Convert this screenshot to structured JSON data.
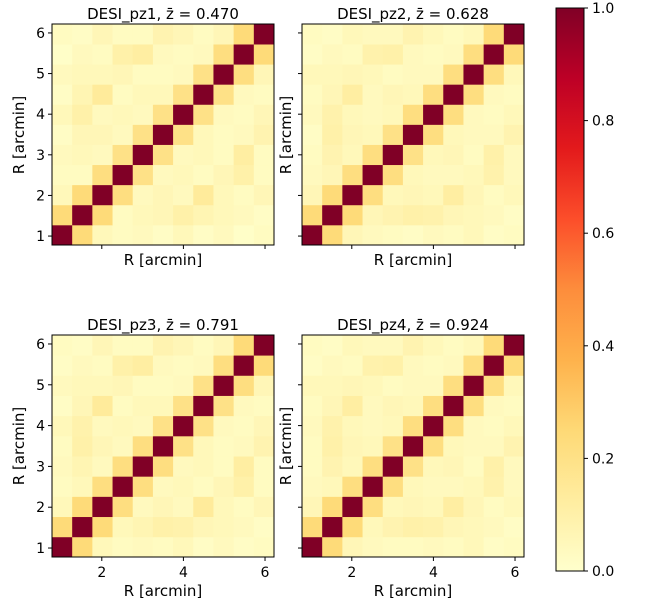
{
  "chart_data": {
    "type": "heatmap",
    "colormap": "YlOrRd",
    "colorbar": {
      "range": [
        0.0,
        1.0
      ],
      "ticks": [
        0.0,
        0.2,
        0.4,
        0.6,
        0.8,
        1.0
      ],
      "tick_labels": [
        "0.0",
        "0.2",
        "0.4",
        "0.6",
        "0.8",
        "1.0"
      ]
    },
    "panels": [
      {
        "title": "DESI_pz1, z̄ = 0.470",
        "xlabel": "R [arcmin]",
        "ylabel": "R [arcmin]",
        "xticks": [],
        "xtick_labels": [],
        "yticks": [
          1,
          2,
          3,
          4,
          5,
          6
        ],
        "ytick_labels": [
          "1",
          "2",
          "3",
          "4",
          "5",
          "6"
        ],
        "matrix": [
          [
            1.0,
            0.24,
            0.05,
            0.03,
            0.04,
            0.02,
            0.05,
            0.02,
            0.04,
            0.01,
            0.03
          ],
          [
            0.24,
            1.0,
            0.24,
            0.03,
            0.05,
            0.06,
            0.1,
            0.07,
            0.05,
            0.04,
            0.02
          ],
          [
            0.05,
            0.24,
            1.0,
            0.22,
            0.04,
            0.06,
            0.04,
            0.14,
            0.05,
            0.03,
            0.06
          ],
          [
            0.03,
            0.03,
            0.22,
            1.0,
            0.2,
            0.04,
            0.05,
            0.03,
            0.06,
            0.1,
            0.03
          ],
          [
            0.04,
            0.05,
            0.04,
            0.2,
            1.0,
            0.2,
            0.04,
            0.05,
            0.03,
            0.12,
            0.03
          ],
          [
            0.02,
            0.06,
            0.06,
            0.04,
            0.2,
            1.0,
            0.2,
            0.05,
            0.03,
            0.04,
            0.08
          ],
          [
            0.05,
            0.1,
            0.04,
            0.05,
            0.04,
            0.2,
            1.0,
            0.2,
            0.04,
            0.03,
            0.06
          ],
          [
            0.02,
            0.07,
            0.14,
            0.03,
            0.05,
            0.05,
            0.2,
            1.0,
            0.2,
            0.04,
            0.03
          ],
          [
            0.04,
            0.05,
            0.05,
            0.06,
            0.03,
            0.03,
            0.04,
            0.2,
            1.0,
            0.22,
            0.06
          ],
          [
            0.01,
            0.04,
            0.03,
            0.1,
            0.12,
            0.04,
            0.03,
            0.04,
            0.22,
            1.0,
            0.24
          ],
          [
            0.03,
            0.02,
            0.06,
            0.03,
            0.03,
            0.08,
            0.06,
            0.03,
            0.06,
            0.24,
            1.0
          ]
        ]
      },
      {
        "title": "DESI_pz2, z̄ = 0.628",
        "xlabel": "R [arcmin]",
        "ylabel": "R [arcmin]",
        "xticks": [],
        "xtick_labels": [],
        "yticks": [],
        "ytick_labels": [],
        "matrix": [
          [
            1.0,
            0.24,
            0.06,
            0.04,
            0.03,
            0.02,
            0.04,
            0.03,
            0.05,
            0.02,
            0.03
          ],
          [
            0.24,
            1.0,
            0.24,
            0.06,
            0.08,
            0.1,
            0.09,
            0.06,
            0.05,
            0.04,
            0.02
          ],
          [
            0.06,
            0.24,
            1.0,
            0.22,
            0.05,
            0.06,
            0.05,
            0.12,
            0.06,
            0.03,
            0.05
          ],
          [
            0.04,
            0.06,
            0.22,
            1.0,
            0.22,
            0.05,
            0.04,
            0.04,
            0.05,
            0.09,
            0.04
          ],
          [
            0.03,
            0.08,
            0.05,
            0.22,
            1.0,
            0.2,
            0.05,
            0.06,
            0.03,
            0.1,
            0.04
          ],
          [
            0.02,
            0.1,
            0.06,
            0.05,
            0.2,
            1.0,
            0.22,
            0.05,
            0.04,
            0.04,
            0.08
          ],
          [
            0.04,
            0.09,
            0.05,
            0.04,
            0.05,
            0.22,
            1.0,
            0.22,
            0.04,
            0.03,
            0.05
          ],
          [
            0.03,
            0.06,
            0.12,
            0.04,
            0.06,
            0.05,
            0.22,
            1.0,
            0.22,
            0.04,
            0.03
          ],
          [
            0.05,
            0.05,
            0.06,
            0.05,
            0.03,
            0.04,
            0.04,
            0.22,
            1.0,
            0.22,
            0.05
          ],
          [
            0.02,
            0.04,
            0.03,
            0.09,
            0.1,
            0.04,
            0.03,
            0.04,
            0.22,
            1.0,
            0.24
          ],
          [
            0.03,
            0.02,
            0.05,
            0.04,
            0.04,
            0.08,
            0.05,
            0.03,
            0.05,
            0.24,
            1.0
          ]
        ]
      },
      {
        "title": "DESI_pz3, z̄ = 0.791",
        "xlabel": "R [arcmin]",
        "ylabel": "R [arcmin]",
        "xticks": [
          2,
          4,
          6
        ],
        "xtick_labels": [
          "2",
          "4",
          "6"
        ],
        "yticks": [
          1,
          2,
          3,
          4,
          5,
          6
        ],
        "ytick_labels": [
          "1",
          "2",
          "3",
          "4",
          "5",
          "6"
        ],
        "matrix": [
          [
            1.0,
            0.24,
            0.05,
            0.03,
            0.04,
            0.03,
            0.05,
            0.02,
            0.04,
            0.02,
            0.03
          ],
          [
            0.24,
            1.0,
            0.24,
            0.05,
            0.07,
            0.1,
            0.09,
            0.06,
            0.05,
            0.04,
            0.02
          ],
          [
            0.05,
            0.24,
            1.0,
            0.22,
            0.04,
            0.06,
            0.04,
            0.14,
            0.05,
            0.03,
            0.06
          ],
          [
            0.03,
            0.05,
            0.22,
            1.0,
            0.22,
            0.04,
            0.05,
            0.03,
            0.06,
            0.1,
            0.03
          ],
          [
            0.04,
            0.07,
            0.04,
            0.22,
            1.0,
            0.22,
            0.04,
            0.05,
            0.03,
            0.12,
            0.03
          ],
          [
            0.03,
            0.1,
            0.06,
            0.04,
            0.22,
            1.0,
            0.2,
            0.05,
            0.03,
            0.04,
            0.08
          ],
          [
            0.05,
            0.09,
            0.04,
            0.05,
            0.04,
            0.2,
            1.0,
            0.2,
            0.04,
            0.03,
            0.06
          ],
          [
            0.02,
            0.06,
            0.14,
            0.03,
            0.05,
            0.05,
            0.2,
            1.0,
            0.2,
            0.04,
            0.03
          ],
          [
            0.04,
            0.05,
            0.05,
            0.06,
            0.03,
            0.03,
            0.04,
            0.2,
            1.0,
            0.22,
            0.06
          ],
          [
            0.02,
            0.04,
            0.03,
            0.1,
            0.12,
            0.04,
            0.03,
            0.04,
            0.22,
            1.0,
            0.24
          ],
          [
            0.03,
            0.02,
            0.06,
            0.03,
            0.03,
            0.08,
            0.06,
            0.03,
            0.06,
            0.24,
            1.0
          ]
        ]
      },
      {
        "title": "DESI_pz4, z̄ = 0.924",
        "xlabel": "R [arcmin]",
        "ylabel": "R [arcmin]",
        "xticks": [
          2,
          4,
          6
        ],
        "xtick_labels": [
          "2",
          "4",
          "6"
        ],
        "yticks": [],
        "ytick_labels": [],
        "matrix": [
          [
            1.0,
            0.24,
            0.06,
            0.04,
            0.03,
            0.03,
            0.04,
            0.03,
            0.05,
            0.02,
            0.03
          ],
          [
            0.24,
            1.0,
            0.24,
            0.05,
            0.08,
            0.1,
            0.09,
            0.06,
            0.05,
            0.04,
            0.02
          ],
          [
            0.06,
            0.24,
            1.0,
            0.22,
            0.05,
            0.06,
            0.05,
            0.12,
            0.06,
            0.03,
            0.05
          ],
          [
            0.04,
            0.05,
            0.22,
            1.0,
            0.22,
            0.05,
            0.04,
            0.04,
            0.05,
            0.09,
            0.04
          ],
          [
            0.03,
            0.08,
            0.05,
            0.22,
            1.0,
            0.2,
            0.05,
            0.06,
            0.03,
            0.1,
            0.04
          ],
          [
            0.03,
            0.1,
            0.06,
            0.05,
            0.2,
            1.0,
            0.22,
            0.05,
            0.04,
            0.04,
            0.08
          ],
          [
            0.04,
            0.09,
            0.05,
            0.04,
            0.05,
            0.22,
            1.0,
            0.22,
            0.04,
            0.03,
            0.05
          ],
          [
            0.03,
            0.06,
            0.12,
            0.04,
            0.06,
            0.05,
            0.22,
            1.0,
            0.22,
            0.04,
            0.03
          ],
          [
            0.05,
            0.05,
            0.06,
            0.05,
            0.03,
            0.04,
            0.04,
            0.22,
            1.0,
            0.22,
            0.05
          ],
          [
            0.02,
            0.04,
            0.03,
            0.09,
            0.1,
            0.04,
            0.03,
            0.04,
            0.22,
            1.0,
            0.24
          ],
          [
            0.03,
            0.02,
            0.05,
            0.04,
            0.04,
            0.08,
            0.05,
            0.03,
            0.05,
            0.24,
            1.0
          ]
        ]
      }
    ]
  }
}
